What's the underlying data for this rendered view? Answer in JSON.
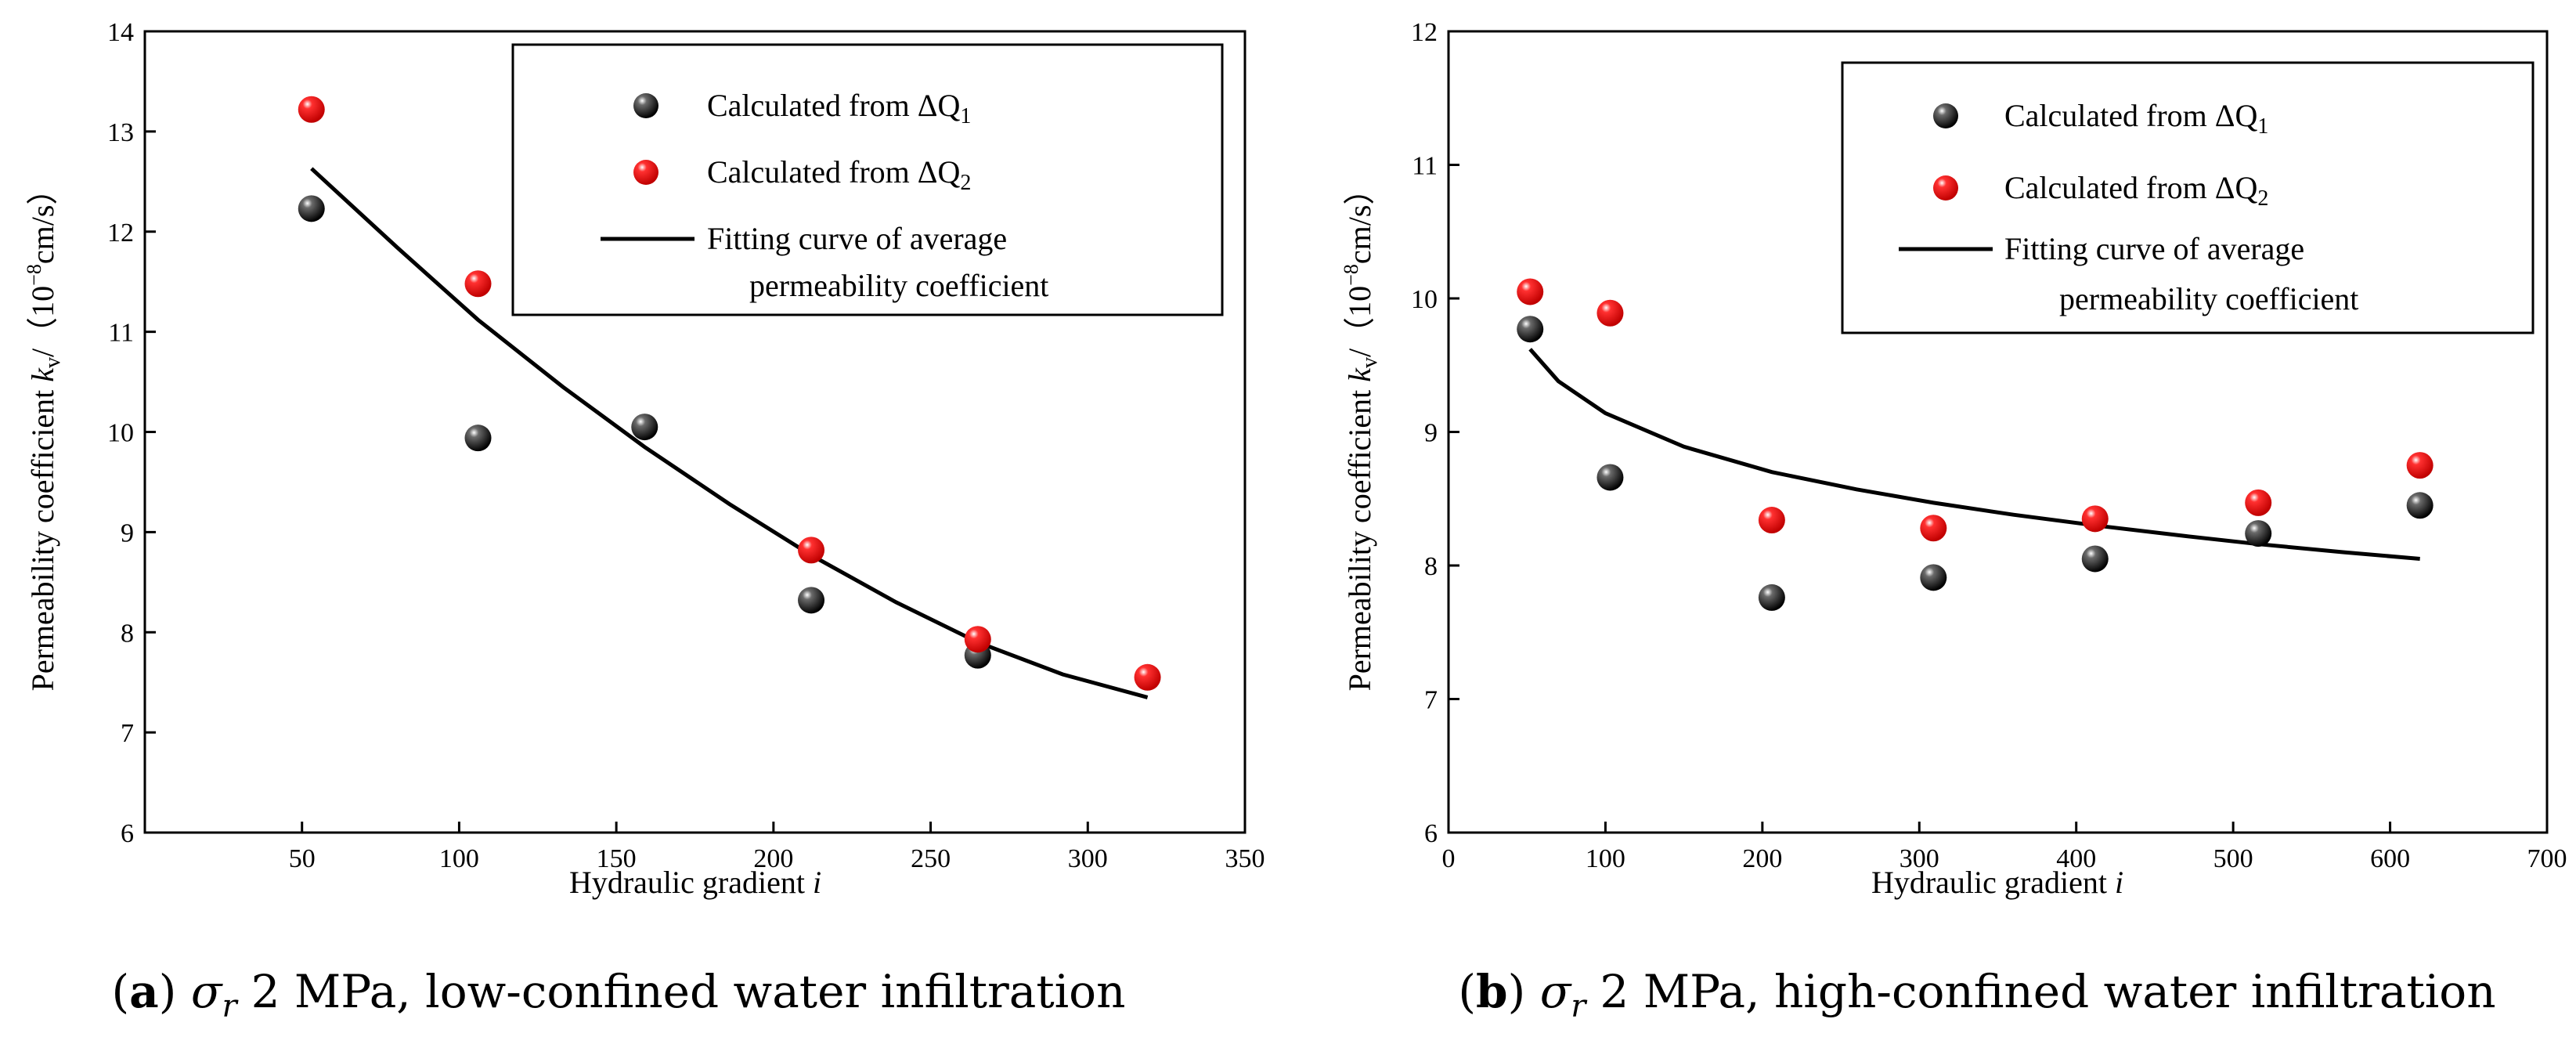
{
  "colors": {
    "series1": "#111111",
    "series2": "#e8000b",
    "fit": "#000000"
  },
  "chart_data": [
    {
      "panel": "a",
      "type": "scatter",
      "caption_letter": "a",
      "caption_symbol": "σ",
      "caption_subscript": "r",
      "caption_text": "2 MPa, low-confined water infiltration",
      "xlabel": "Hydraulic gradient",
      "xlabel_var": "i",
      "ylabel": "Permeability coefficient",
      "ylabel_var": "k",
      "ylabel_sub": "v",
      "ylabel_unit": "/（10",
      "ylabel_exp": "−8",
      "ylabel_unit_tail": "cm/s）",
      "xlim": [
        0,
        350
      ],
      "ylim": [
        6,
        14
      ],
      "xticks": [
        50,
        100,
        150,
        200,
        250,
        300,
        350
      ],
      "yticks": [
        6,
        7,
        8,
        9,
        10,
        11,
        12,
        13,
        14
      ],
      "legend": {
        "series1": "Calculated from ΔQ",
        "series1_sub": "1",
        "series2": "Calculated from ΔQ",
        "series2_sub": "2",
        "fit_line1": "Fitting curve of average",
        "fit_line2": "permeability coefficient"
      },
      "series": [
        {
          "name": "Calculated from ΔQ1",
          "x": [
            53,
            106,
            159,
            212,
            265
          ],
          "y": [
            12.23,
            9.94,
            10.05,
            8.32,
            7.77
          ]
        },
        {
          "name": "Calculated from ΔQ2",
          "x": [
            53,
            106,
            212,
            265,
            319
          ],
          "y": [
            13.22,
            11.48,
            8.82,
            7.93,
            7.55
          ]
        }
      ],
      "fit": {
        "x": [
          53,
          80,
          106,
          133,
          159,
          186,
          212,
          239,
          265,
          292,
          319
        ],
        "y": [
          12.63,
          11.85,
          11.12,
          10.45,
          9.85,
          9.28,
          8.77,
          8.3,
          7.9,
          7.58,
          7.35
        ]
      }
    },
    {
      "panel": "b",
      "type": "scatter",
      "caption_letter": "b",
      "caption_symbol": "σ",
      "caption_subscript": "r",
      "caption_text": "2 MPa, high-confined water infiltration",
      "xlabel": "Hydraulic gradient",
      "xlabel_var": "i",
      "ylabel": "Permeability coefficient",
      "ylabel_var": "k",
      "ylabel_sub": "v",
      "ylabel_unit": "/（10",
      "ylabel_exp": "−8",
      "ylabel_unit_tail": "cm/s）",
      "xlim": [
        0,
        700
      ],
      "ylim": [
        6,
        12
      ],
      "xticks": [
        0,
        100,
        200,
        300,
        400,
        500,
        600,
        700
      ],
      "yticks": [
        6,
        7,
        8,
        9,
        10,
        11,
        12
      ],
      "legend": {
        "series1": "Calculated from ΔQ",
        "series1_sub": "1",
        "series2": "Calculated from ΔQ",
        "series2_sub": "2",
        "fit_line1": "Fitting curve of average",
        "fit_line2": "permeability coefficient"
      },
      "series": [
        {
          "name": "Calculated from ΔQ1",
          "x": [
            52,
            103,
            206,
            309,
            412,
            516,
            619
          ],
          "y": [
            9.77,
            8.66,
            7.76,
            7.91,
            8.05,
            8.24,
            8.45
          ]
        },
        {
          "name": "Calculated from ΔQ2",
          "x": [
            52,
            103,
            206,
            309,
            412,
            516,
            619
          ],
          "y": [
            10.05,
            9.89,
            8.34,
            8.28,
            8.35,
            8.47,
            8.75
          ]
        }
      ],
      "fit": {
        "x": [
          52,
          70,
          100,
          150,
          206,
          260,
          309,
          360,
          412,
          470,
          516,
          570,
          619
        ],
        "y": [
          9.62,
          9.38,
          9.14,
          8.89,
          8.7,
          8.57,
          8.47,
          8.38,
          8.3,
          8.22,
          8.16,
          8.1,
          8.05
        ]
      }
    }
  ]
}
